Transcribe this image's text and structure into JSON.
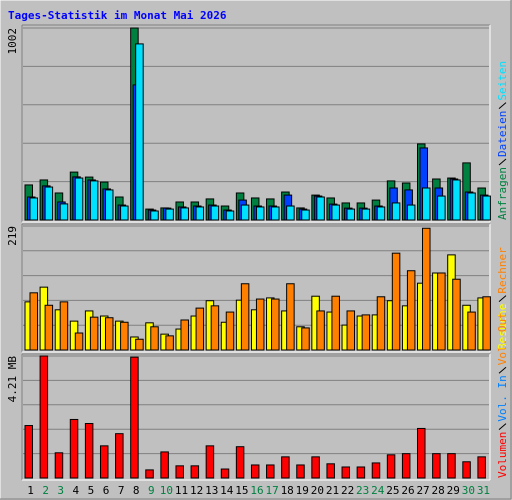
{
  "chart_data": [
    {
      "type": "bar",
      "title": "Tages-Statistik im Monat Mai 2026",
      "ylim": [
        0,
        1002
      ],
      "yticks": [
        1002
      ],
      "grid_divisions": 5,
      "series": [
        {
          "name": "Anfragen",
          "color": "#008040",
          "values": [
            183,
            209,
            141,
            250,
            224,
            198,
            120,
            1002,
            57,
            63,
            94,
            94,
            110,
            73,
            141,
            115,
            110,
            146,
            63,
            130,
            115,
            89,
            89,
            104,
            204,
            193,
            397,
            214,
            219,
            298,
            167
          ]
        },
        {
          "name": "Dateien",
          "color": "#0040ff",
          "values": [
            120,
            178,
            94,
            225,
            209,
            162,
            78,
            705,
            52,
            62,
            68,
            73,
            78,
            52,
            104,
            73,
            73,
            130,
            57,
            125,
            83,
            62,
            62,
            73,
            167,
            157,
            376,
            167,
            214,
            146,
            130
          ]
        },
        {
          "name": "Seiten",
          "color": "#00e0ff",
          "values": [
            115,
            172,
            84,
            219,
            204,
            157,
            73,
            919,
            47,
            57,
            63,
            68,
            73,
            47,
            78,
            68,
            68,
            73,
            52,
            120,
            78,
            57,
            57,
            68,
            89,
            78,
            167,
            125,
            209,
            141,
            125
          ]
        }
      ]
    },
    {
      "type": "bar",
      "ylim": [
        0,
        219
      ],
      "yticks": [
        219
      ],
      "grid_divisions": 5,
      "series": [
        {
          "name": "Besuche",
          "color": "#ffff00",
          "values": [
            85,
            111,
            71,
            51,
            69,
            60,
            51,
            23,
            48,
            28,
            37,
            60,
            87,
            49,
            88,
            71,
            92,
            69,
            41,
            95,
            67,
            44,
            60,
            62,
            87,
            78,
            118,
            136,
            168,
            79,
            92
          ]
        },
        {
          "name": "Rechner",
          "color": "#ff8000",
          "values": [
            101,
            79,
            85,
            30,
            58,
            57,
            49,
            19,
            41,
            25,
            53,
            74,
            78,
            67,
            117,
            90,
            90,
            117,
            39,
            69,
            95,
            69,
            62,
            94,
            171,
            140,
            215,
            136,
            125,
            67,
            94
          ]
        }
      ]
    },
    {
      "type": "bar",
      "ylim": [
        0,
        4.21
      ],
      "yticks": [
        {
          "value": 4.21,
          "label": "4.21 MB"
        }
      ],
      "grid_divisions": 5,
      "categories": [
        "1",
        "2",
        "3",
        "4",
        "5",
        "6",
        "7",
        "8",
        "9",
        "10",
        "11",
        "12",
        "13",
        "14",
        "15",
        "16",
        "17",
        "18",
        "19",
        "20",
        "21",
        "22",
        "23",
        "24",
        "25",
        "26",
        "27",
        "28",
        "29",
        "30",
        "31"
      ],
      "category_colors": [
        "#000000",
        "#008040",
        "#008040",
        "#000000",
        "#000000",
        "#000000",
        "#000000",
        "#000000",
        "#008040",
        "#008040",
        "#000000",
        "#000000",
        "#000000",
        "#000000",
        "#000000",
        "#008040",
        "#008040",
        "#000000",
        "#000000",
        "#000000",
        "#000000",
        "#000000",
        "#008040",
        "#008040",
        "#000000",
        "#000000",
        "#000000",
        "#000000",
        "#000000",
        "#008040",
        "#008040"
      ],
      "series": [
        {
          "name": "Volumen",
          "color": "#ff0000",
          "values": [
            1.81,
            4.21,
            0.87,
            2.02,
            1.88,
            1.11,
            1.53,
            4.17,
            0.28,
            0.9,
            0.42,
            0.42,
            1.11,
            0.31,
            1.08,
            0.45,
            0.45,
            0.73,
            0.45,
            0.73,
            0.49,
            0.38,
            0.38,
            0.52,
            0.8,
            0.84,
            1.71,
            0.84,
            0.84,
            0.56,
            0.73
          ]
        },
        {
          "name": "Vol. In",
          "color": "#0080ff",
          "values": [
            0,
            0,
            0,
            0,
            0,
            0,
            0,
            0,
            0,
            0,
            0,
            0,
            0,
            0,
            0,
            0,
            0,
            0,
            0,
            0,
            0,
            0,
            0,
            0,
            0,
            0,
            0,
            0,
            0,
            0,
            0
          ]
        },
        {
          "name": "Vol. Out",
          "color": "#ff8000",
          "values": [
            0,
            0,
            0,
            0,
            0,
            0,
            0,
            0,
            0,
            0,
            0,
            0,
            0,
            0,
            0,
            0,
            0,
            0,
            0,
            0,
            0,
            0,
            0,
            0,
            0,
            0,
            0,
            0,
            0,
            0,
            0
          ]
        }
      ]
    }
  ]
}
